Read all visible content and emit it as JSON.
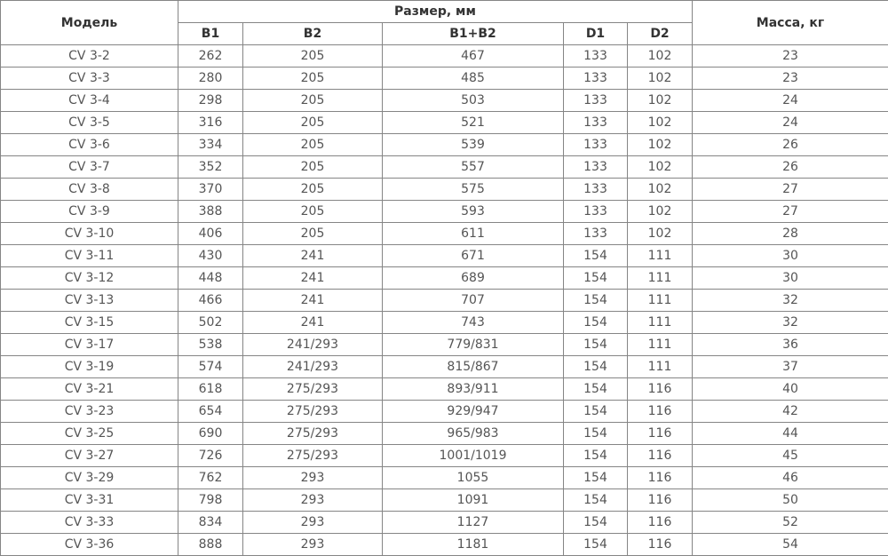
{
  "header": {
    "model": "Модель",
    "size_group": "Размер, мм",
    "mass": "Масса, кг",
    "sub": [
      "B1",
      "B2",
      "B1+B2",
      "D1",
      "D2"
    ]
  },
  "rows": [
    [
      "CV 3-2",
      "262",
      "205",
      "467",
      "133",
      "102",
      "23"
    ],
    [
      "CV 3-3",
      "280",
      "205",
      "485",
      "133",
      "102",
      "23"
    ],
    [
      "CV 3-4",
      "298",
      "205",
      "503",
      "133",
      "102",
      "24"
    ],
    [
      "CV 3-5",
      "316",
      "205",
      "521",
      "133",
      "102",
      "24"
    ],
    [
      "CV 3-6",
      "334",
      "205",
      "539",
      "133",
      "102",
      "26"
    ],
    [
      "CV 3-7",
      "352",
      "205",
      "557",
      "133",
      "102",
      "26"
    ],
    [
      "CV 3-8",
      "370",
      "205",
      "575",
      "133",
      "102",
      "27"
    ],
    [
      "CV 3-9",
      "388",
      "205",
      "593",
      "133",
      "102",
      "27"
    ],
    [
      "CV 3-10",
      "406",
      "205",
      "611",
      "133",
      "102",
      "28"
    ],
    [
      "CV 3-11",
      "430",
      "241",
      "671",
      "154",
      "111",
      "30"
    ],
    [
      "CV 3-12",
      "448",
      "241",
      "689",
      "154",
      "111",
      "30"
    ],
    [
      "CV 3-13",
      "466",
      "241",
      "707",
      "154",
      "111",
      "32"
    ],
    [
      "CV 3-15",
      "502",
      "241",
      "743",
      "154",
      "111",
      "32"
    ],
    [
      "CV 3-17",
      "538",
      "241/293",
      "779/831",
      "154",
      "111",
      "36"
    ],
    [
      "CV 3-19",
      "574",
      "241/293",
      "815/867",
      "154",
      "111",
      "37"
    ],
    [
      "CV 3-21",
      "618",
      "275/293",
      "893/911",
      "154",
      "116",
      "40"
    ],
    [
      "CV 3-23",
      "654",
      "275/293",
      "929/947",
      "154",
      "116",
      "42"
    ],
    [
      "CV 3-25",
      "690",
      "275/293",
      "965/983",
      "154",
      "116",
      "44"
    ],
    [
      "CV 3-27",
      "726",
      "275/293",
      "1001/1019",
      "154",
      "116",
      "45"
    ],
    [
      "CV 3-29",
      "762",
      "293",
      "1055",
      "154",
      "116",
      "46"
    ],
    [
      "CV 3-31",
      "798",
      "293",
      "1091",
      "154",
      "116",
      "50"
    ],
    [
      "CV 3-33",
      "834",
      "293",
      "1127",
      "154",
      "116",
      "52"
    ],
    [
      "CV 3-36",
      "888",
      "293",
      "1181",
      "154",
      "116",
      "54"
    ]
  ]
}
